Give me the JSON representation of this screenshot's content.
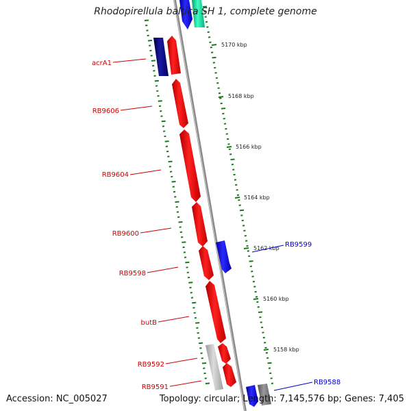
{
  "title": "Rhodopirellula baltica SH 1, complete genome",
  "footer": {
    "accession": "Accession: NC_005027",
    "topology": "Topology: circular; Length: 7,145,576 bp; Genes: 7,405"
  },
  "ticks": [
    "5170 kbp",
    "5168 kbp",
    "5166 kbp",
    "5164 kbp",
    "5162 kbp",
    "5160 kbp",
    "5158 kbp"
  ],
  "gene_labels": {
    "acrA1": "acrA1",
    "RB9606": "RB9606",
    "RB9604": "RB9604",
    "RB9600": "RB9600",
    "RB9598": "RB9598",
    "butB": "butB",
    "RB9592": "RB9592",
    "RB9591": "RB9591",
    "RB9599": "RB9599",
    "RB9588": "RB9588"
  },
  "colors": {
    "highlight_gene": "#ff0000",
    "forward_gene": "#0000ff",
    "dark_gene": "#000080",
    "teal_gene": "#00e0a0",
    "pseudo_gene": "#c0c0c0",
    "backbone": "#808080",
    "tick": "#1a7a1a",
    "label_red": "#cc0000",
    "label_blue": "#0000cc"
  }
}
